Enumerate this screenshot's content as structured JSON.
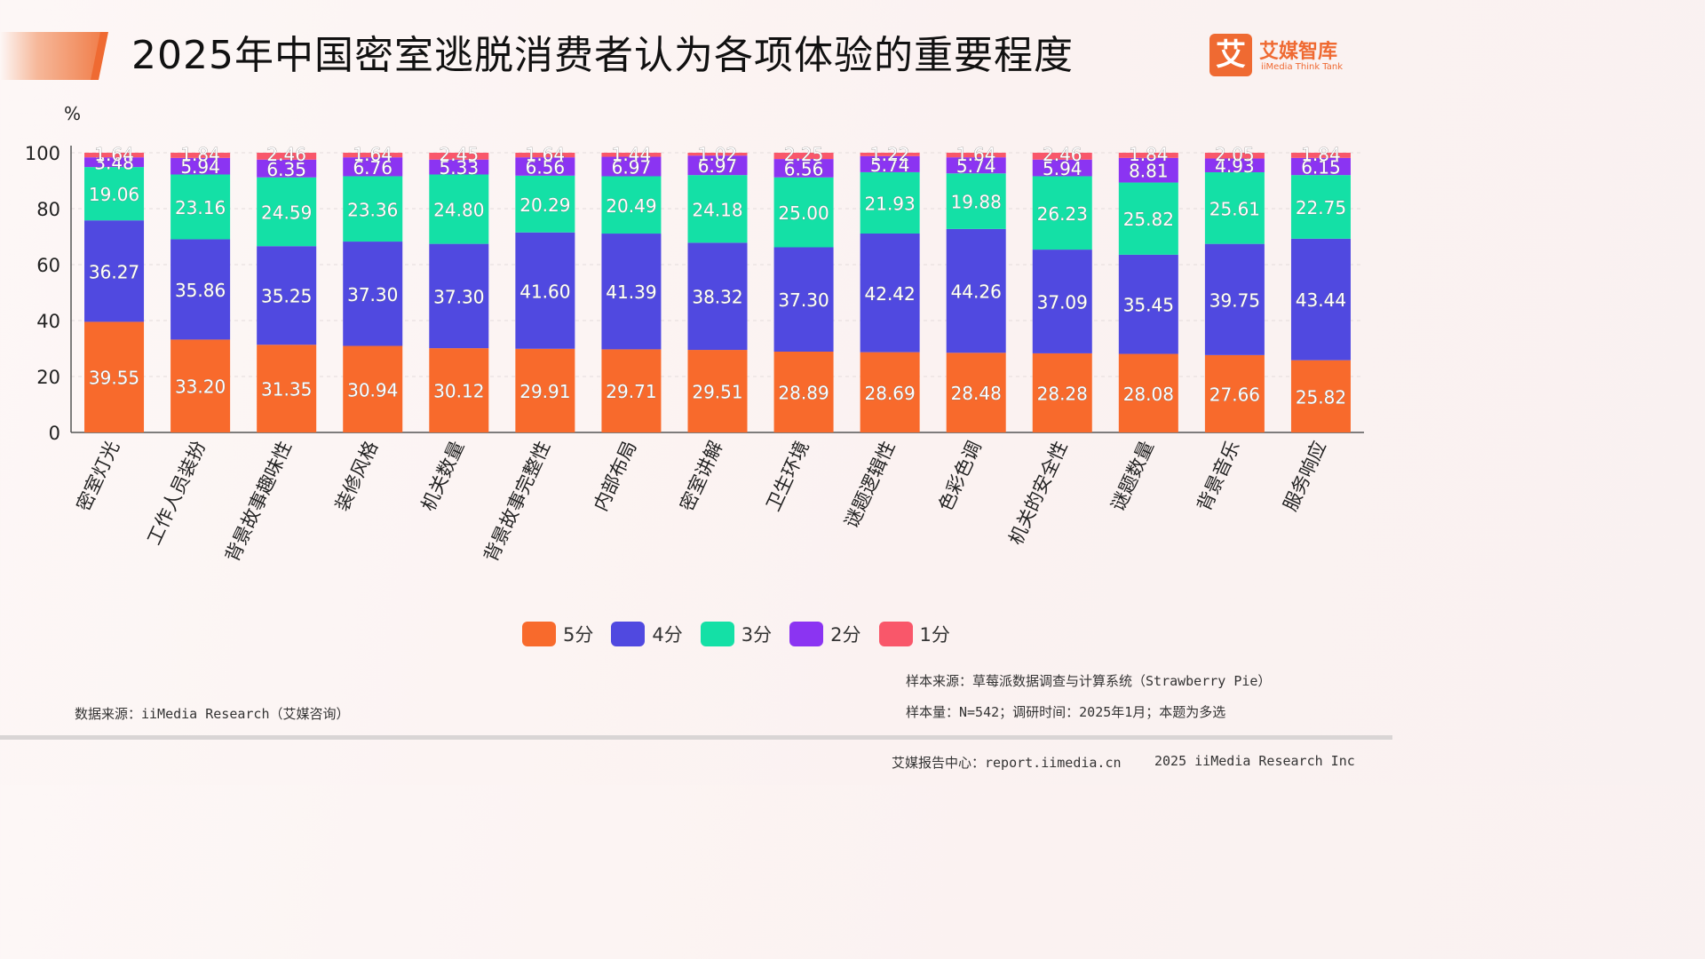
{
  "header": {
    "title": "2025年中国密室逃脱消费者认为各项体验的重要程度",
    "logo_mark": "艾",
    "logo_cn": "艾媒智库",
    "logo_en": "iiMedia Think Tank"
  },
  "colors": {
    "accent": "#ef6a32",
    "s5": "#f86a2c",
    "s4": "#5049e0",
    "s3": "#14e0a6",
    "s2": "#8b34f2",
    "s1": "#f9576a"
  },
  "chart_data": {
    "type": "bar",
    "stacked": true,
    "ylabel": "%",
    "ylim": [
      0,
      100
    ],
    "yticks": [
      0,
      20,
      40,
      60,
      80,
      100
    ],
    "grid": true,
    "legend_position": "bottom",
    "categories": [
      "密室灯光",
      "工作人员装扮",
      "背景故事趣味性",
      "装修风格",
      "机关数量",
      "背景故事完整性",
      "内部布局",
      "密室讲解",
      "卫生环境",
      "谜题逻辑性",
      "色彩色调",
      "机关的安全性",
      "谜题数量",
      "背景音乐",
      "服务响应"
    ],
    "series": [
      {
        "name": "5分",
        "values": [
          39.55,
          33.2,
          31.35,
          30.94,
          30.12,
          29.91,
          29.71,
          29.51,
          28.89,
          28.69,
          28.48,
          28.28,
          28.08,
          27.66,
          25.82
        ]
      },
      {
        "name": "4分",
        "values": [
          36.27,
          35.86,
          35.25,
          37.3,
          37.3,
          41.6,
          41.39,
          38.32,
          37.3,
          42.42,
          44.26,
          37.09,
          35.45,
          39.75,
          43.44
        ]
      },
      {
        "name": "3分",
        "values": [
          19.06,
          23.16,
          24.59,
          23.36,
          24.8,
          20.29,
          20.49,
          24.18,
          25.0,
          21.93,
          19.88,
          26.23,
          25.82,
          25.61,
          22.75
        ]
      },
      {
        "name": "2分",
        "values": [
          3.48,
          5.94,
          6.35,
          6.76,
          5.33,
          6.56,
          6.97,
          6.97,
          6.56,
          5.74,
          5.74,
          5.94,
          8.81,
          4.93,
          6.15
        ]
      },
      {
        "name": "1分",
        "values": [
          1.64,
          1.84,
          2.46,
          1.64,
          2.45,
          1.64,
          1.44,
          1.02,
          2.25,
          1.22,
          1.64,
          2.46,
          1.84,
          2.05,
          1.84
        ]
      }
    ]
  },
  "legend": [
    {
      "label": "5分",
      "color": "#f86a2c"
    },
    {
      "label": "4分",
      "color": "#5049e0"
    },
    {
      "label": "3分",
      "color": "#14e0a6"
    },
    {
      "label": "2分",
      "color": "#8b34f2"
    },
    {
      "label": "1分",
      "color": "#f9576a"
    }
  ],
  "notes": {
    "sample_source": "样本来源：草莓派数据调查与计算系统（Strawberry Pie）",
    "sample_size": "样本量：N=542；调研时间：2025年1月；本题为多选",
    "data_source": "数据来源：iiMedia Research（艾媒咨询）",
    "footer_center": "艾媒报告中心：report.iimedia.cn",
    "footer_copyright": "2025 iiMedia Research Inc"
  }
}
